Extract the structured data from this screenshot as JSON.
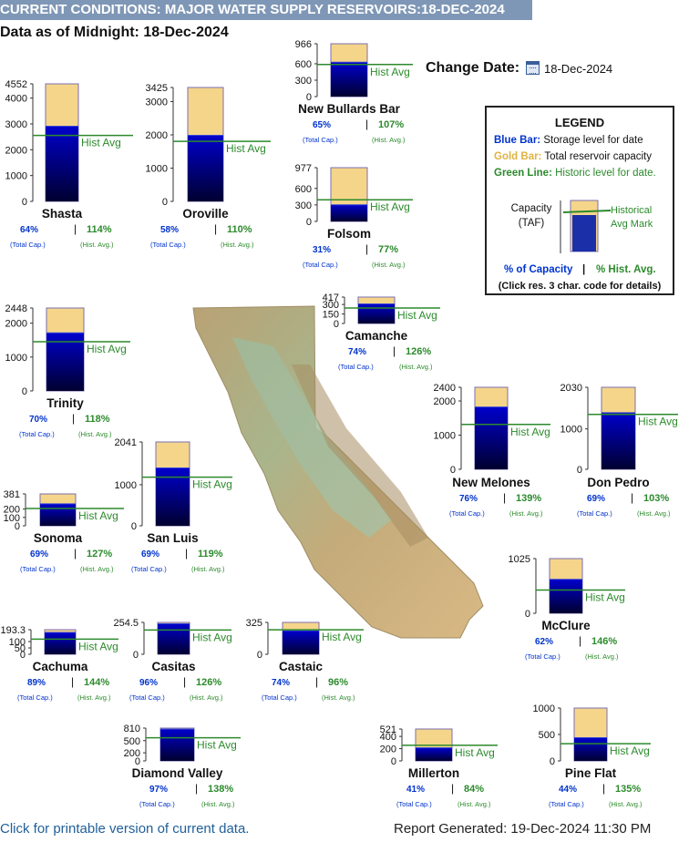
{
  "header": {
    "banner": "CURRENT CONDITIONS: MAJOR WATER SUPPLY RESERVOIRS:18-DEC-2024",
    "as_of": "Data as of Midnight: 18-Dec-2024",
    "change_date_label": "Change Date",
    "change_date_value": "18-Dec-2024"
  },
  "legend": {
    "title": "LEGEND",
    "blue_label": "Blue Bar:",
    "blue_text": "Storage level for date",
    "gold_label": "Gold Bar:",
    "gold_text": "Total reservoir capacity",
    "green_label": "Green Line:",
    "green_text": "Historic level for date.",
    "capacity_label": "Capacity",
    "taf_label": "(TAF)",
    "hist_mark_1": "Historical",
    "hist_mark_2": "Avg Mark",
    "pct_capacity": "% of Capacity",
    "separator": "|",
    "pct_hist": "% Hist. Avg.",
    "click_note": "(Click res. 3 char. code for details)"
  },
  "footer": {
    "printable_link": "Click for printable version of current data.",
    "report_generated": "Report Generated: 19-Dec-2024 11:30 PM"
  },
  "labels": {
    "hist_avg": "Hist Avg",
    "total_cap": "(Total Cap.)",
    "hist_avg_small": "(Hist. Avg.)",
    "separator": "|"
  },
  "colors": {
    "capacity": "#f5d58a",
    "storage_top": "#0000cc",
    "storage_bottom": "#000030",
    "historic": "#2c8a2c",
    "pct_capacity": "#0033cc",
    "pct_hist": "#2c8a2c"
  },
  "chart_data": {
    "type": "bar",
    "unit": "TAF",
    "reservoirs": [
      {
        "name": "Shasta",
        "capacity": 4552,
        "storage": 2913,
        "hist_avg": 2555,
        "pct_capacity": "64%",
        "pct_hist": "114%",
        "ticks": [
          "0",
          "1000",
          "2000",
          "3000",
          "4000",
          "4552"
        ]
      },
      {
        "name": "Oroville",
        "capacity": 3425,
        "storage": 1987,
        "hist_avg": 1806,
        "pct_capacity": "58%",
        "pct_hist": "110%",
        "ticks": [
          "0",
          "1000",
          "2000",
          "3000",
          "3425"
        ]
      },
      {
        "name": "New Bullards Bar",
        "capacity": 966,
        "storage": 628,
        "hist_avg": 587,
        "pct_capacity": "65%",
        "pct_hist": "107%",
        "ticks": [
          "0",
          "300",
          "600",
          "966"
        ]
      },
      {
        "name": "Folsom",
        "capacity": 977,
        "storage": 303,
        "hist_avg": 394,
        "pct_capacity": "31%",
        "pct_hist": "77%",
        "ticks": [
          "0",
          "300",
          "600",
          "977"
        ]
      },
      {
        "name": "Trinity",
        "capacity": 2448,
        "storage": 1714,
        "hist_avg": 1452,
        "pct_capacity": "70%",
        "pct_hist": "118%",
        "ticks": [
          "0",
          "1000",
          "2000",
          "2448"
        ]
      },
      {
        "name": "Camanche",
        "capacity": 417,
        "storage": 309,
        "hist_avg": 245,
        "pct_capacity": "74%",
        "pct_hist": "126%",
        "ticks": [
          "0",
          "150",
          "300",
          "417"
        ]
      },
      {
        "name": "New Melones",
        "capacity": 2400,
        "storage": 1824,
        "hist_avg": 1312,
        "pct_capacity": "76%",
        "pct_hist": "139%",
        "ticks": [
          "0",
          "1000",
          "2000",
          "2400"
        ]
      },
      {
        "name": "Don Pedro",
        "capacity": 2030,
        "storage": 1401,
        "hist_avg": 1360,
        "pct_capacity": "69%",
        "pct_hist": "103%",
        "ticks": [
          "0",
          "1000",
          "2030"
        ]
      },
      {
        "name": "Sonoma",
        "capacity": 381,
        "storage": 263,
        "hist_avg": 207,
        "pct_capacity": "69%",
        "pct_hist": "127%",
        "ticks": [
          "0",
          "100",
          "200",
          "381"
        ]
      },
      {
        "name": "San Luis",
        "capacity": 2041,
        "storage": 1408,
        "hist_avg": 1183,
        "pct_capacity": "69%",
        "pct_hist": "119%",
        "ticks": [
          "0",
          "1000",
          "2041"
        ]
      },
      {
        "name": "McClure",
        "capacity": 1025,
        "storage": 636,
        "hist_avg": 436,
        "pct_capacity": "62%",
        "pct_hist": "146%",
        "ticks": [
          "0",
          "1025"
        ]
      },
      {
        "name": "Cachuma",
        "capacity": 193.3,
        "storage": 172,
        "hist_avg": 119,
        "pct_capacity": "89%",
        "pct_hist": "144%",
        "ticks": [
          "0",
          "50",
          "100",
          "193.3"
        ]
      },
      {
        "name": "Casitas",
        "capacity": 254.5,
        "storage": 244,
        "hist_avg": 194,
        "pct_capacity": "96%",
        "pct_hist": "126%",
        "ticks": [
          "0",
          "254.5"
        ]
      },
      {
        "name": "Castaic",
        "capacity": 325,
        "storage": 240,
        "hist_avg": 250,
        "pct_capacity": "74%",
        "pct_hist": "96%",
        "ticks": [
          "0",
          "325"
        ]
      },
      {
        "name": "Diamond Valley",
        "capacity": 810,
        "storage": 786,
        "hist_avg": 570,
        "pct_capacity": "97%",
        "pct_hist": "138%",
        "ticks": [
          "0",
          "200",
          "500",
          "810"
        ]
      },
      {
        "name": "Millerton",
        "capacity": 521,
        "storage": 214,
        "hist_avg": 255,
        "pct_capacity": "41%",
        "pct_hist": "84%",
        "ticks": [
          "0",
          "200",
          "400",
          "521"
        ]
      },
      {
        "name": "Pine Flat",
        "capacity": 1000,
        "storage": 440,
        "hist_avg": 326,
        "pct_capacity": "44%",
        "pct_hist": "135%",
        "ticks": [
          "0",
          "500",
          "1000"
        ]
      }
    ]
  }
}
